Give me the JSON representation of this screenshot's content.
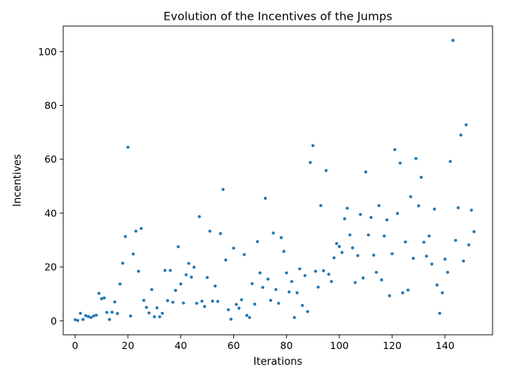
{
  "chart_data": {
    "type": "scatter",
    "title": "Evolution of the Incentives of the Jumps",
    "xlabel": "Iterations",
    "ylabel": "Incentives",
    "xlim": [
      -4.5,
      158
    ],
    "ylim": [
      -5.2,
      109.5
    ],
    "xticks": [
      0,
      20,
      40,
      60,
      80,
      100,
      120,
      140
    ],
    "yticks": [
      0,
      20,
      40,
      60,
      80,
      100
    ],
    "grid": false,
    "marker_color": "#1f77b4",
    "series": [
      {
        "x": [
          0,
          1,
          2,
          3,
          4,
          5,
          6,
          7,
          8,
          9,
          10,
          11,
          12,
          13,
          14,
          15,
          16,
          17,
          18,
          19,
          20,
          21,
          22,
          23,
          24,
          25,
          26,
          27,
          28,
          29,
          30,
          31,
          32,
          33,
          34,
          35,
          36,
          37,
          38,
          39,
          40,
          41,
          42,
          43,
          44,
          45,
          46,
          47,
          48,
          49,
          50,
          51,
          52,
          53,
          54,
          55,
          56,
          57,
          58,
          59,
          60,
          61,
          62,
          63,
          64,
          65,
          66,
          67,
          68,
          69,
          70,
          71,
          72,
          73,
          74,
          75,
          76,
          77,
          78,
          79,
          80,
          81,
          82,
          83,
          84,
          85,
          86,
          87,
          88,
          89,
          90,
          91,
          92,
          93,
          94,
          95,
          96,
          97,
          98,
          99,
          100,
          101,
          102,
          103,
          104,
          105,
          106,
          107,
          108,
          109,
          110,
          111,
          112,
          113,
          114,
          115,
          116,
          117,
          118,
          119,
          120,
          121,
          122,
          123,
          124,
          125,
          126,
          127,
          128,
          129,
          130,
          131,
          132,
          133,
          134,
          135,
          136,
          137,
          138,
          139,
          140,
          141,
          142,
          143,
          144,
          145,
          146,
          147,
          148,
          149,
          150,
          151
        ],
        "y": [
          0.4,
          0.1,
          2.8,
          0.5,
          1.9,
          1.6,
          1.2,
          1.8,
          2.1,
          10.2,
          8.2,
          8.5,
          3.1,
          0.5,
          3.2,
          7.0,
          2.7,
          13.7,
          21.4,
          31.3,
          64.5,
          1.8,
          24.8,
          33.3,
          18.4,
          34.3,
          7.6,
          5.0,
          2.9,
          11.6,
          1.5,
          4.8,
          1.5,
          2.8,
          18.7,
          7.5,
          18.7,
          6.9,
          11.3,
          27.5,
          13.7,
          6.6,
          17.1,
          21.3,
          16.2,
          19.9,
          6.5,
          38.7,
          7.3,
          5.3,
          16.1,
          33.3,
          7.3,
          12.9,
          7.2,
          32.4,
          48.8,
          22.6,
          4.1,
          0.6,
          27.0,
          6.1,
          4.7,
          7.8,
          24.6,
          2.0,
          1.2,
          13.8,
          6.2,
          29.4,
          17.8,
          12.4,
          45.5,
          15.5,
          7.6,
          32.6,
          11.6,
          6.5,
          30.9,
          25.8,
          17.8,
          10.7,
          14.6,
          1.2,
          10.4,
          19.3,
          5.7,
          16.8,
          3.4,
          58.8,
          65.1,
          18.4,
          12.5,
          42.8,
          18.6,
          55.8,
          17.3,
          14.6,
          23.4,
          28.7,
          27.6,
          25.4,
          37.9,
          41.8,
          31.9,
          27.1,
          14.2,
          24.2,
          39.5,
          15.9,
          55.3,
          31.9,
          38.4,
          24.4,
          18.0,
          42.8,
          15.2,
          31.5,
          37.5,
          9.3,
          24.9,
          63.6,
          39.9,
          58.6,
          10.4,
          29.3,
          11.4,
          46.1,
          23.2,
          60.3,
          42.7,
          53.3,
          29.2,
          24.0,
          31.5,
          21.1,
          41.5,
          13.3,
          2.8,
          10.4,
          22.9,
          18.0,
          59.2,
          104.2,
          29.9,
          42.0,
          69.0,
          22.2,
          72.8,
          28.2,
          41.1,
          33.1
        ]
      }
    ]
  }
}
